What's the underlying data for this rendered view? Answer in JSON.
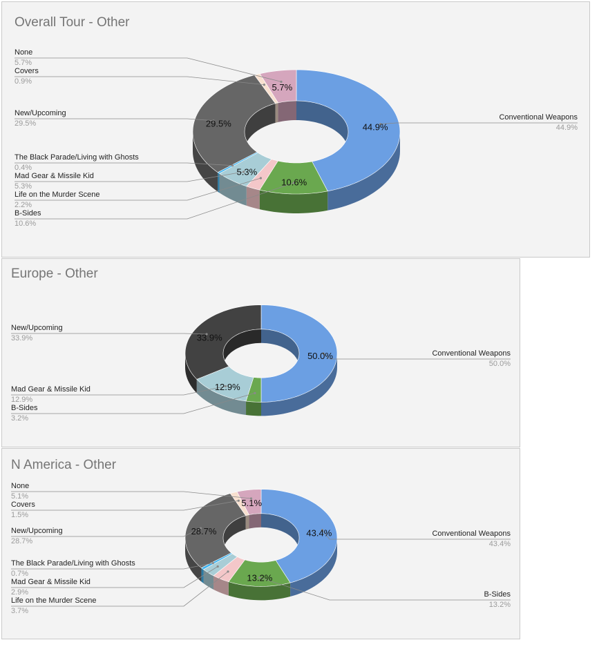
{
  "chart_data": [
    {
      "type": "pie",
      "title": "Overall Tour - Other",
      "labels": [
        "Conventional Weapons",
        "B-Sides",
        "Life on the Murder Scene",
        "Mad Gear & Missile Kid",
        "The Black Parade/Living with Ghosts",
        "New/Upcoming",
        "Covers",
        "None"
      ],
      "values": [
        44.9,
        10.6,
        2.2,
        5.3,
        0.4,
        29.5,
        0.9,
        5.7
      ],
      "value_labels": [
        "44.9%",
        "10.6%",
        "2.2%",
        "5.3%",
        "0.4%",
        "29.5%",
        "0.9%",
        "5.7%"
      ],
      "colors": [
        "#6b9fe3",
        "#6aa84f",
        "#f4c7c9",
        "#a8cdd6",
        "#3fb3f0",
        "#666666",
        "#f8e0cf",
        "#d5a6bd"
      ],
      "donut": true,
      "legend": "callout-labels"
    },
    {
      "type": "pie",
      "title": "Europe - Other",
      "labels": [
        "Conventional Weapons",
        "B-Sides",
        "Mad Gear & Missile Kid",
        "New/Upcoming"
      ],
      "values": [
        50.0,
        3.2,
        12.9,
        33.9
      ],
      "value_labels": [
        "50.0%",
        "3.2%",
        "12.9%",
        "33.9%"
      ],
      "colors": [
        "#6b9fe3",
        "#6aa84f",
        "#a8cdd6",
        "#424242"
      ],
      "donut": true,
      "legend": "callout-labels"
    },
    {
      "type": "pie",
      "title": "N America - Other",
      "labels": [
        "Conventional Weapons",
        "B-Sides",
        "Life on the Murder Scene",
        "Mad Gear & Missile Kid",
        "The Black Parade/Living with Ghosts",
        "New/Upcoming",
        "Covers",
        "None"
      ],
      "values": [
        43.4,
        13.2,
        3.7,
        2.9,
        0.7,
        28.7,
        1.5,
        5.1
      ],
      "value_labels": [
        "43.4%",
        "13.2%",
        "3.7%",
        "2.9%",
        "0.7%",
        "28.7%",
        "1.5%",
        "5.1%"
      ],
      "colors": [
        "#6b9fe3",
        "#6aa84f",
        "#f4c7c9",
        "#a8cdd6",
        "#3fb3f0",
        "#666666",
        "#f8e0cf",
        "#d5a6bd"
      ],
      "donut": true,
      "legend": "callout-labels"
    }
  ]
}
